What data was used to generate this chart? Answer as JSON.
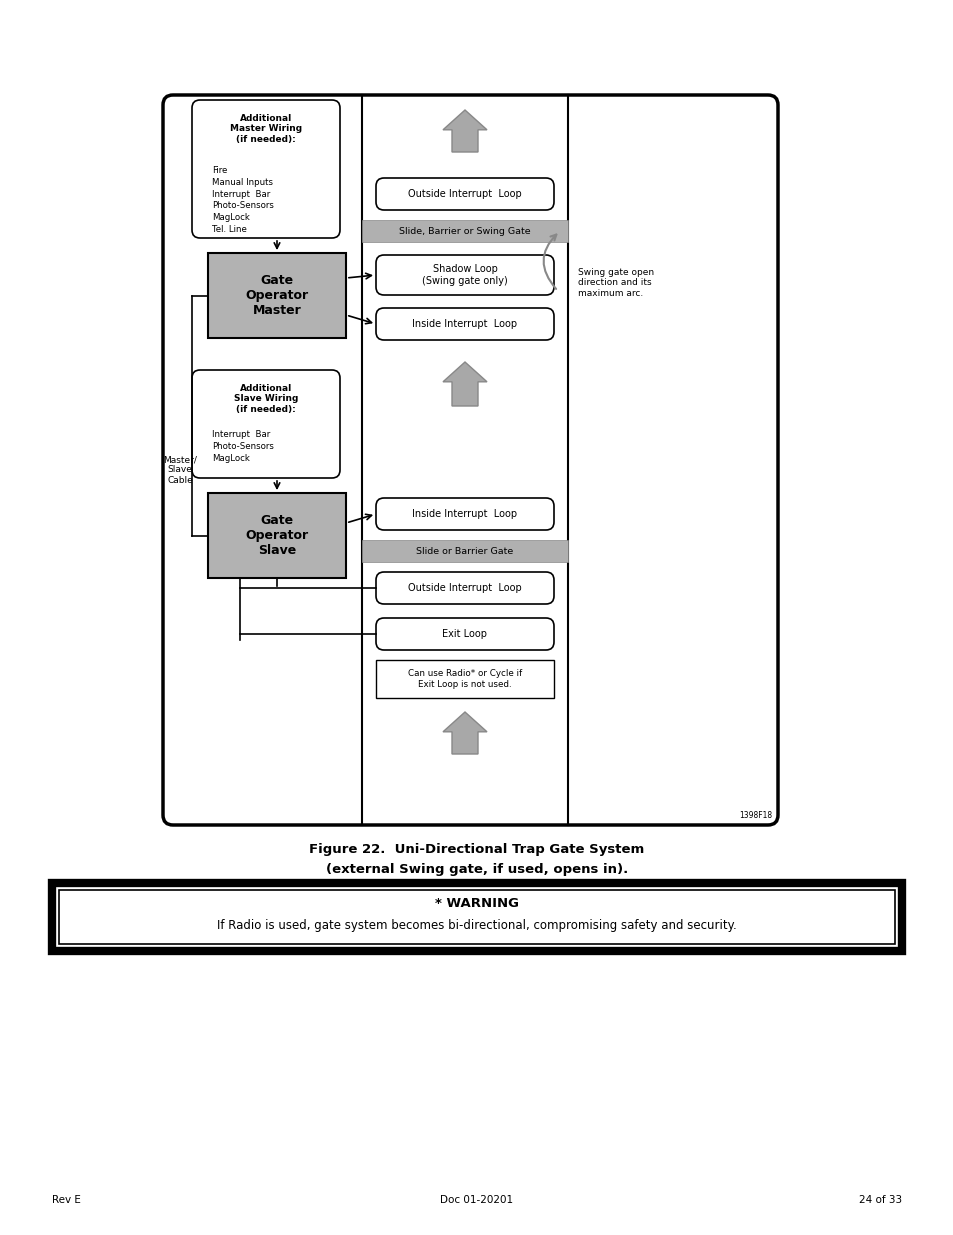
{
  "page_bg": "#ffffff",
  "figure_caption_line1": "Figure 22.  Uni-Directional Trap Gate System",
  "figure_caption_line2": "(external Swing gate, if used, opens in).",
  "warning_title": "* WARNING",
  "warning_text": "If Radio is used, gate system becomes bi-directional, compromising safety and security.",
  "footer_left": "Rev E",
  "footer_center": "Doc 01-20201",
  "footer_right": "24 of 33",
  "image_ref": "1398F18"
}
